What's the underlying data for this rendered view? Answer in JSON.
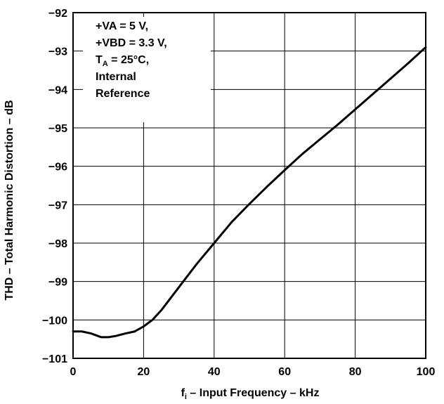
{
  "chart_data": {
    "type": "line",
    "xlabel": {
      "main": "f",
      "sub": "i",
      "rest": " – Input Frequency – kHz"
    },
    "ylabel": "THD – Total Harmonic Distortion – dB",
    "xlim": [
      0,
      100
    ],
    "ylim": [
      -101,
      -92
    ],
    "x_ticks": [
      "0",
      "20",
      "40",
      "60",
      "80",
      "100"
    ],
    "y_ticks": [
      "−92",
      "−93",
      "−94",
      "−95",
      "−96",
      "−97",
      "−98",
      "−99",
      "−100",
      "−101"
    ],
    "grid": true,
    "legend_placement": "top-left",
    "conditions": [
      {
        "text": "+VA = 5 V,"
      },
      {
        "text": "+VBD = 3.3 V,"
      },
      {
        "main": "T",
        "sub": "A",
        "rest": " = 25°C,"
      },
      {
        "text": "Internal"
      },
      {
        "text": "Reference"
      }
    ],
    "series": [
      {
        "color": "#000000",
        "x": [
          0,
          2.5,
          5,
          8,
          10,
          12,
          15,
          17.5,
          20,
          22.5,
          25,
          30,
          35,
          40,
          45,
          50,
          55,
          60,
          65,
          70,
          75,
          80,
          85,
          90,
          95,
          100
        ],
        "y": [
          -100.3,
          -100.3,
          -100.35,
          -100.45,
          -100.45,
          -100.42,
          -100.35,
          -100.3,
          -100.17,
          -100.0,
          -99.75,
          -99.15,
          -98.55,
          -98.0,
          -97.45,
          -96.98,
          -96.53,
          -96.1,
          -95.68,
          -95.3,
          -94.92,
          -94.52,
          -94.12,
          -93.72,
          -93.32,
          -92.9
        ]
      }
    ]
  }
}
